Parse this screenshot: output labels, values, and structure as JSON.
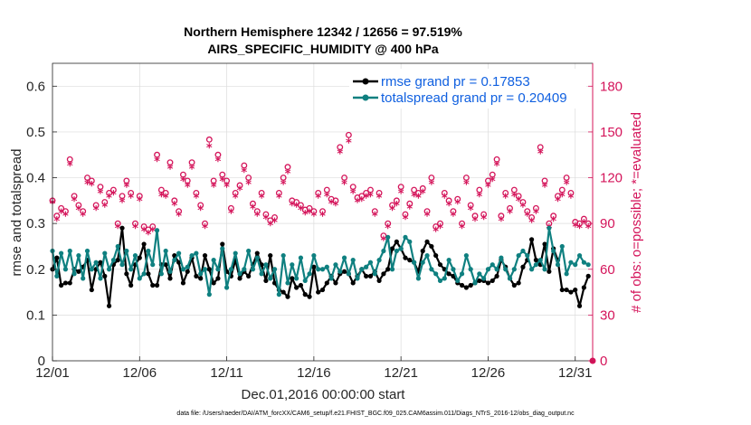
{
  "chart_data": {
    "type": "line",
    "title": "Northern Hemisphere 12342 / 12656 = 97.519%",
    "subtitle": "AIRS_SPECIFIC_HUMIDITY @ 400 hPa",
    "xlabel": "Dec.01,2016 00:00:00 start",
    "ylabel": "rmse and totalspread",
    "y2label": "# of obs: o=possible; *=evaluated",
    "ylim": [
      0,
      0.65
    ],
    "y2lim": [
      0,
      195
    ],
    "yticks": [
      "0",
      "0.1",
      "0.2",
      "0.3",
      "0.4",
      "0.5",
      "0.6"
    ],
    "y2ticks": [
      "0",
      "30",
      "60",
      "90",
      "120",
      "150",
      "180"
    ],
    "xlim": [
      1,
      32
    ],
    "xticks": [
      {
        "value": 1,
        "label": "12/01"
      },
      {
        "value": 6,
        "label": "12/06"
      },
      {
        "value": 11,
        "label": "12/11"
      },
      {
        "value": 16,
        "label": "12/16"
      },
      {
        "value": 21,
        "label": "12/21"
      },
      {
        "value": 26,
        "label": "12/26"
      },
      {
        "value": 31,
        "label": "12/31"
      }
    ],
    "legend_position": "top-right",
    "footnote": "data file: /Users/raeder/DAI/ATM_forcXX/CAM6_setup/f.e21.FHIST_BGC.f09_025.CAM6assim.011/Diags_NTrS_2016-12/obs_diag_output.nc",
    "series": [
      {
        "name": "rmse grand pr = 0.17853",
        "color": "#000000",
        "axis": "left",
        "x": [
          1.0,
          1.25,
          1.5,
          1.75,
          2.0,
          2.25,
          2.5,
          2.75,
          3.0,
          3.25,
          3.5,
          3.75,
          4.0,
          4.25,
          4.5,
          4.75,
          5.0,
          5.25,
          5.5,
          5.75,
          6.0,
          6.25,
          6.5,
          6.75,
          7.0,
          7.25,
          7.5,
          7.75,
          8.0,
          8.25,
          8.5,
          8.75,
          9.0,
          9.25,
          9.5,
          9.75,
          10.0,
          10.25,
          10.5,
          10.75,
          11.0,
          11.25,
          11.5,
          11.75,
          12.0,
          12.25,
          12.5,
          12.75,
          13.0,
          13.25,
          13.5,
          13.75,
          14.0,
          14.25,
          14.5,
          14.75,
          15.0,
          15.25,
          15.5,
          15.75,
          16.0,
          16.25,
          16.5,
          16.75,
          17.0,
          17.25,
          17.5,
          17.75,
          18.0,
          18.25,
          18.5,
          18.75,
          19.0,
          19.25,
          19.5,
          19.75,
          20.0,
          20.25,
          20.5,
          20.75,
          21.0,
          21.25,
          21.5,
          21.75,
          22.0,
          22.25,
          22.5,
          22.75,
          23.0,
          23.25,
          23.5,
          23.75,
          24.0,
          24.25,
          24.5,
          24.75,
          25.0,
          25.25,
          25.5,
          25.75,
          26.0,
          26.25,
          26.5,
          26.75,
          27.0,
          27.25,
          27.5,
          27.75,
          28.0,
          28.25,
          28.5,
          28.75,
          29.0,
          29.25,
          29.5,
          29.75,
          30.0,
          30.25,
          30.5,
          30.75,
          31.0,
          31.25,
          31.5,
          31.75
        ],
        "values": [
          0.2,
          0.225,
          0.165,
          0.17,
          0.17,
          0.2,
          0.195,
          0.205,
          0.22,
          0.155,
          0.2,
          0.215,
          0.185,
          0.12,
          0.21,
          0.22,
          0.29,
          0.19,
          0.165,
          0.21,
          0.225,
          0.255,
          0.19,
          0.165,
          0.165,
          0.21,
          0.21,
          0.18,
          0.23,
          0.215,
          0.17,
          0.195,
          0.225,
          0.185,
          0.18,
          0.23,
          0.2,
          0.17,
          0.18,
          0.255,
          0.195,
          0.185,
          0.22,
          0.18,
          0.195,
          0.185,
          0.21,
          0.235,
          0.21,
          0.175,
          0.23,
          0.17,
          0.155,
          0.15,
          0.14,
          0.18,
          0.16,
          0.165,
          0.145,
          0.14,
          0.205,
          0.15,
          0.155,
          0.17,
          0.185,
          0.17,
          0.19,
          0.195,
          0.19,
          0.17,
          0.185,
          0.2,
          0.185,
          0.185,
          0.195,
          0.175,
          0.19,
          0.2,
          0.245,
          0.26,
          0.245,
          0.225,
          0.22,
          0.215,
          0.195,
          0.24,
          0.26,
          0.25,
          0.23,
          0.21,
          0.2,
          0.19,
          0.185,
          0.17,
          0.165,
          0.16,
          0.165,
          0.17,
          0.175,
          0.175,
          0.17,
          0.175,
          0.185,
          0.22,
          0.205,
          0.18,
          0.165,
          0.17,
          0.205,
          0.22,
          0.265,
          0.22,
          0.21,
          0.255,
          0.195,
          0.245,
          0.22,
          0.155,
          0.155,
          0.15,
          0.155,
          0.12,
          0.16,
          0.185
        ]
      },
      {
        "name": "totalspread grand pr = 0.20409",
        "color": "#0f8080",
        "axis": "left",
        "x": [
          1.0,
          1.25,
          1.5,
          1.75,
          2.0,
          2.25,
          2.5,
          2.75,
          3.0,
          3.25,
          3.5,
          3.75,
          4.0,
          4.25,
          4.5,
          4.75,
          5.0,
          5.25,
          5.5,
          5.75,
          6.0,
          6.25,
          6.5,
          6.75,
          7.0,
          7.25,
          7.5,
          7.75,
          8.0,
          8.25,
          8.5,
          8.75,
          9.0,
          9.25,
          9.5,
          9.75,
          10.0,
          10.25,
          10.5,
          10.75,
          11.0,
          11.25,
          11.5,
          11.75,
          12.0,
          12.25,
          12.5,
          12.75,
          13.0,
          13.25,
          13.5,
          13.75,
          14.0,
          14.25,
          14.5,
          14.75,
          15.0,
          15.25,
          15.5,
          15.75,
          16.0,
          16.25,
          16.5,
          16.75,
          17.0,
          17.25,
          17.5,
          17.75,
          18.0,
          18.25,
          18.5,
          18.75,
          19.0,
          19.25,
          19.5,
          19.75,
          20.0,
          20.25,
          20.5,
          20.75,
          21.0,
          21.25,
          21.5,
          21.75,
          22.0,
          22.25,
          22.5,
          22.75,
          23.0,
          23.25,
          23.5,
          23.75,
          24.0,
          24.25,
          24.5,
          24.75,
          25.0,
          25.25,
          25.5,
          25.75,
          26.0,
          26.25,
          26.5,
          26.75,
          27.0,
          27.25,
          27.5,
          27.75,
          28.0,
          28.25,
          28.5,
          28.75,
          29.0,
          29.25,
          29.5,
          29.75,
          30.0,
          30.25,
          30.5,
          30.75,
          31.0,
          31.25,
          31.5,
          31.75
        ],
        "values": [
          0.24,
          0.185,
          0.235,
          0.2,
          0.24,
          0.19,
          0.23,
          0.18,
          0.24,
          0.2,
          0.215,
          0.18,
          0.235,
          0.2,
          0.22,
          0.25,
          0.21,
          0.24,
          0.2,
          0.23,
          0.18,
          0.19,
          0.24,
          0.21,
          0.285,
          0.19,
          0.24,
          0.195,
          0.22,
          0.235,
          0.2,
          0.205,
          0.23,
          0.235,
          0.19,
          0.2,
          0.145,
          0.22,
          0.2,
          0.245,
          0.16,
          0.2,
          0.235,
          0.19,
          0.2,
          0.24,
          0.2,
          0.225,
          0.19,
          0.21,
          0.18,
          0.2,
          0.145,
          0.23,
          0.17,
          0.21,
          0.18,
          0.225,
          0.175,
          0.19,
          0.23,
          0.2,
          0.2,
          0.205,
          0.18,
          0.21,
          0.195,
          0.225,
          0.19,
          0.22,
          0.18,
          0.2,
          0.205,
          0.215,
          0.19,
          0.22,
          0.24,
          0.27,
          0.2,
          0.24,
          0.245,
          0.27,
          0.26,
          0.215,
          0.18,
          0.215,
          0.23,
          0.2,
          0.19,
          0.175,
          0.18,
          0.22,
          0.2,
          0.175,
          0.19,
          0.23,
          0.2,
          0.17,
          0.19,
          0.18,
          0.2,
          0.21,
          0.2,
          0.225,
          0.2,
          0.18,
          0.2,
          0.23,
          0.24,
          0.23,
          0.2,
          0.21,
          0.22,
          0.2,
          0.29,
          0.24,
          0.21,
          0.25,
          0.19,
          0.215,
          0.21,
          0.23,
          0.215,
          0.21
        ]
      },
      {
        "name": "obs possible",
        "color": "#d4145a",
        "axis": "right",
        "marker": "o",
        "x": [
          1.0,
          1.25,
          1.5,
          1.75,
          2.0,
          2.25,
          2.5,
          2.75,
          3.0,
          3.25,
          3.5,
          3.75,
          4.0,
          4.25,
          4.5,
          4.75,
          5.0,
          5.25,
          5.5,
          5.75,
          6.0,
          6.25,
          6.5,
          6.75,
          7.0,
          7.25,
          7.5,
          7.75,
          8.0,
          8.25,
          8.5,
          8.75,
          9.0,
          9.25,
          9.5,
          9.75,
          10.0,
          10.25,
          10.5,
          10.75,
          11.0,
          11.25,
          11.5,
          11.75,
          12.0,
          12.25,
          12.5,
          12.75,
          13.0,
          13.25,
          13.5,
          13.75,
          14.0,
          14.25,
          14.5,
          14.75,
          15.0,
          15.25,
          15.5,
          15.75,
          16.0,
          16.25,
          16.5,
          16.75,
          17.0,
          17.25,
          17.5,
          17.75,
          18.0,
          18.25,
          18.5,
          18.75,
          19.0,
          19.25,
          19.5,
          19.75,
          20.0,
          20.25,
          20.5,
          20.75,
          21.0,
          21.25,
          21.5,
          21.75,
          22.0,
          22.25,
          22.5,
          22.75,
          23.0,
          23.25,
          23.5,
          23.75,
          24.0,
          24.25,
          24.5,
          24.75,
          25.0,
          25.25,
          25.5,
          25.75,
          26.0,
          26.25,
          26.5,
          26.75,
          27.0,
          27.25,
          27.5,
          27.75,
          28.0,
          28.25,
          28.5,
          28.75,
          29.0,
          29.25,
          29.5,
          29.75,
          30.0,
          30.25,
          30.5,
          30.75,
          31.0,
          31.25,
          31.5,
          31.75
        ],
        "values": [
          105,
          95,
          100,
          98,
          132,
          108,
          102,
          98,
          120,
          118,
          102,
          114,
          104,
          110,
          112,
          90,
          108,
          118,
          110,
          90,
          108,
          88,
          86,
          88,
          135,
          112,
          110,
          130,
          105,
          98,
          122,
          118,
          130,
          110,
          102,
          90,
          145,
          118,
          135,
          122,
          118,
          100,
          110,
          115,
          128,
          120,
          103,
          98,
          110,
          96,
          92,
          94,
          110,
          120,
          127,
          105,
          104,
          102,
          99,
          100,
          98,
          110,
          98,
          112,
          106,
          105,
          140,
          120,
          148,
          114,
          107,
          108,
          110,
          112,
          98,
          110,
          82,
          90,
          102,
          105,
          114,
          96,
          103,
          112,
          110,
          113,
          98,
          120,
          88,
          90,
          110,
          105,
          98,
          106,
          90,
          120,
          102,
          95,
          112,
          96,
          118,
          122,
          132,
          95,
          110,
          100,
          112,
          108,
          104,
          98,
          94,
          100,
          140,
          118,
          90,
          95,
          108,
          112,
          120,
          110,
          91,
          90,
          93,
          90
        ]
      },
      {
        "name": "obs evaluated",
        "color": "#d4145a",
        "axis": "right",
        "marker": "*",
        "x": [
          1.0,
          1.25,
          1.5,
          1.75,
          2.0,
          2.25,
          2.5,
          2.75,
          3.0,
          3.25,
          3.5,
          3.75,
          4.0,
          4.25,
          4.5,
          4.75,
          5.0,
          5.25,
          5.5,
          5.75,
          6.0,
          6.25,
          6.5,
          6.75,
          7.0,
          7.25,
          7.5,
          7.75,
          8.0,
          8.25,
          8.5,
          8.75,
          9.0,
          9.25,
          9.5,
          9.75,
          10.0,
          10.25,
          10.5,
          10.75,
          11.0,
          11.25,
          11.5,
          11.75,
          12.0,
          12.25,
          12.5,
          12.75,
          13.0,
          13.25,
          13.5,
          13.75,
          14.0,
          14.25,
          14.5,
          14.75,
          15.0,
          15.25,
          15.5,
          15.75,
          16.0,
          16.25,
          16.5,
          16.75,
          17.0,
          17.25,
          17.5,
          17.75,
          18.0,
          18.25,
          18.5,
          18.75,
          19.0,
          19.25,
          19.5,
          19.75,
          20.0,
          20.25,
          20.5,
          20.75,
          21.0,
          21.25,
          21.5,
          21.75,
          22.0,
          22.25,
          22.5,
          22.75,
          23.0,
          23.25,
          23.5,
          23.75,
          24.0,
          24.25,
          24.5,
          24.75,
          25.0,
          25.25,
          25.5,
          25.75,
          26.0,
          26.25,
          26.5,
          26.75,
          27.0,
          27.25,
          27.5,
          27.75,
          28.0,
          28.25,
          28.5,
          28.75,
          29.0,
          29.25,
          29.5,
          29.75,
          30.0,
          30.25,
          30.5,
          30.75,
          31.0,
          31.25,
          31.5,
          31.75
        ],
        "values": [
          103,
          92,
          97,
          95,
          128,
          105,
          99,
          95,
          116,
          115,
          99,
          110,
          101,
          107,
          109,
          87,
          104,
          114,
          107,
          87,
          105,
          85,
          83,
          85,
          131,
          108,
          107,
          126,
          102,
          95,
          118,
          114,
          126,
          107,
          99,
          87,
          140,
          114,
          131,
          118,
          114,
          97,
          107,
          112,
          124,
          116,
          100,
          95,
          107,
          93,
          89,
          91,
          107,
          116,
          123,
          102,
          101,
          99,
          96,
          97,
          95,
          107,
          95,
          108,
          103,
          102,
          136,
          116,
          143,
          110,
          104,
          105,
          107,
          108,
          95,
          107,
          79,
          87,
          99,
          102,
          110,
          93,
          100,
          108,
          107,
          110,
          95,
          116,
          85,
          87,
          107,
          102,
          95,
          103,
          87,
          116,
          99,
          92,
          108,
          93,
          114,
          118,
          128,
          92,
          107,
          97,
          108,
          105,
          101,
          95,
          91,
          97,
          136,
          114,
          87,
          92,
          105,
          108,
          116,
          107,
          88,
          87,
          90,
          87
        ]
      }
    ]
  }
}
